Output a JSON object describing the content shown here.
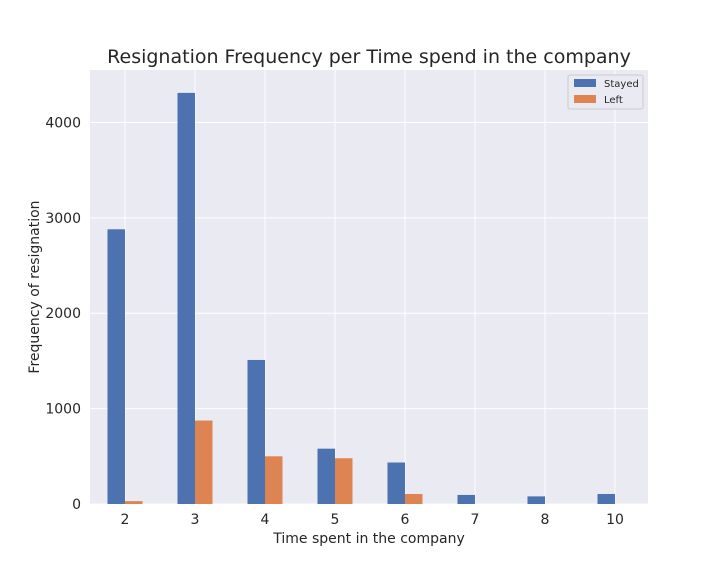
{
  "chart_data": {
    "type": "bar",
    "title": "Resignation Frequency per Time spend in the company",
    "xlabel": "Time spent in the company",
    "ylabel": "Frequency of resignation",
    "categories": [
      "2",
      "3",
      "4",
      "5",
      "6",
      "7",
      "8",
      "10"
    ],
    "series": [
      {
        "name": "Stayed",
        "color": "#4c72b0",
        "values": [
          2880,
          4310,
          1510,
          580,
          435,
          95,
          80,
          105
        ]
      },
      {
        "name": "Left",
        "color": "#dd8452",
        "values": [
          30,
          875,
          500,
          480,
          105,
          0,
          0,
          0
        ]
      }
    ],
    "ylim": [
      0,
      4550
    ],
    "yticks": [
      0,
      1000,
      2000,
      3000,
      4000
    ],
    "grid": true,
    "legend": "top-right",
    "background": "#eaeaf2"
  }
}
